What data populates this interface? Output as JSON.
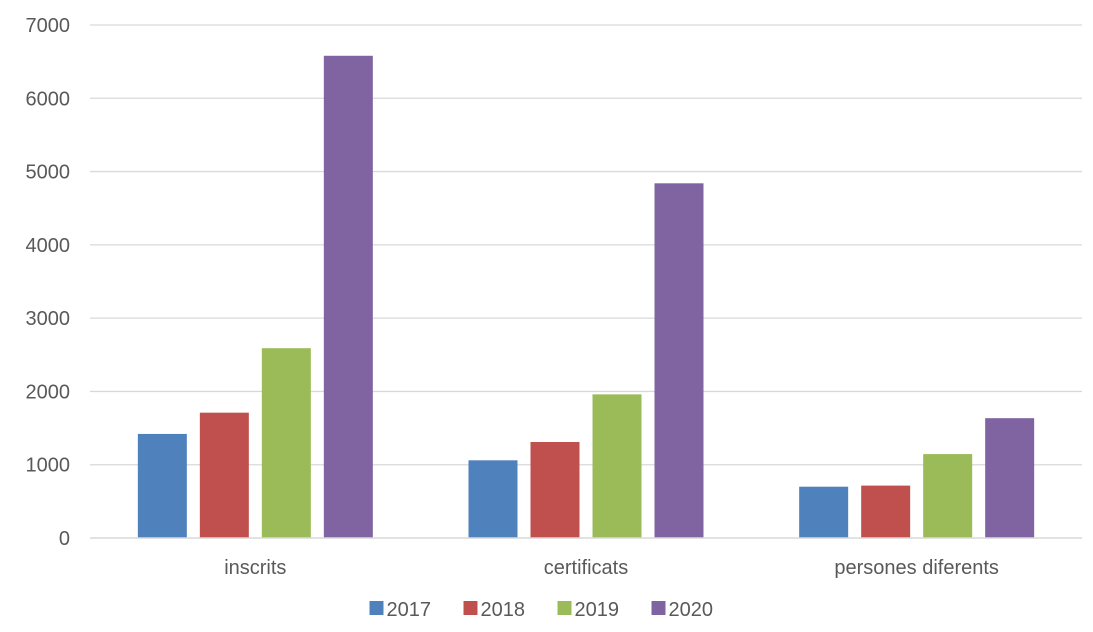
{
  "chart_data": {
    "type": "bar",
    "categories": [
      "inscrits",
      "certificats",
      "persones diferents"
    ],
    "series": [
      {
        "name": "2017",
        "color": "#4f81bd",
        "values": [
          1420,
          1060,
          700
        ]
      },
      {
        "name": "2018",
        "color": "#c0504d",
        "values": [
          1710,
          1310,
          715
        ]
      },
      {
        "name": "2019",
        "color": "#9bbb59",
        "values": [
          2590,
          1960,
          1145
        ]
      },
      {
        "name": "2020",
        "color": "#8064a2",
        "values": [
          6580,
          4840,
          1635
        ]
      }
    ],
    "y_ticks": [
      "0",
      "1000",
      "2000",
      "3000",
      "4000",
      "5000",
      "6000",
      "7000"
    ],
    "ylim": [
      0,
      7000
    ],
    "grid": true,
    "legend_position": "bottom",
    "gridline_color": "#d9d9d9",
    "text_color": "#595959"
  }
}
